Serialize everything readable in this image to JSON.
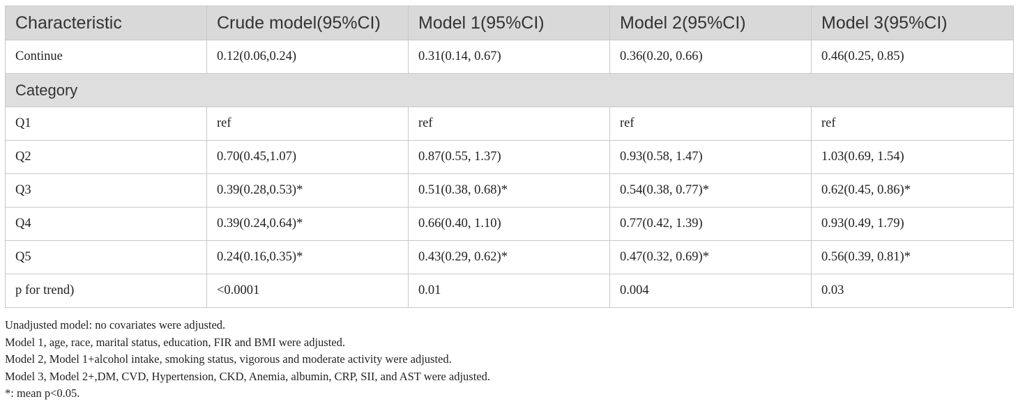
{
  "table": {
    "headers": [
      "Characteristic",
      "Crude model(95%CI)",
      "Model 1(95%CI)",
      "Model 2(95%CI)",
      "Model 3(95%CI)"
    ],
    "continue_row": [
      "Continue",
      "0.12(0.06,0.24)",
      "0.31(0.14, 0.67)",
      "0.36(0.20, 0.66)",
      "0.46(0.25, 0.85)"
    ],
    "category_label": "Category",
    "rows": [
      [
        "Q1",
        "ref",
        "ref",
        "ref",
        "ref"
      ],
      [
        "Q2",
        "0.70(0.45,1.07)",
        "0.87(0.55, 1.37)",
        "0.93(0.58, 1.47)",
        "1.03(0.69, 1.54)"
      ],
      [
        "Q3",
        "0.39(0.28,0.53)*",
        "0.51(0.38, 0.68)*",
        "0.54(0.38, 0.77)*",
        "0.62(0.45, 0.86)*"
      ],
      [
        "Q4",
        "0.39(0.24,0.64)*",
        "0.66(0.40, 1.10)",
        "0.77(0.42, 1.39)",
        "0.93(0.49, 1.79)"
      ],
      [
        "Q5",
        "0.24(0.16,0.35)*",
        "0.43(0.29, 0.62)*",
        "0.47(0.32, 0.69)*",
        "0.56(0.39, 0.81)*"
      ],
      [
        "p for trend)",
        "<0.0001",
        "0.01",
        "0.004",
        "0.03"
      ]
    ]
  },
  "notes": [
    "Unadjusted model: no covariates were adjusted.",
    "Model 1, age, race, marital status, education, FIR and BMI were adjusted.",
    "Model 2, Model 1+alcohol intake, smoking status, vigorous and moderate activity were adjusted.",
    "Model 3, Model 2+,DM, CVD, Hypertension, CKD, Anemia, albumin, CRP, SII, and AST were adjusted.",
    "*: mean p<0.05."
  ],
  "colors": {
    "header_bg": "#d9d9d9",
    "category_bg": "#dedede",
    "border": "#c8c8c8",
    "text": "#222222"
  }
}
